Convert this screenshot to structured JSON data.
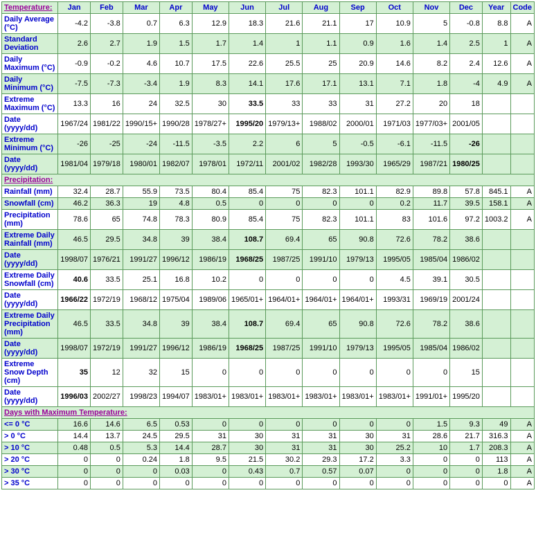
{
  "columns": [
    "Jan",
    "Feb",
    "Mar",
    "Apr",
    "May",
    "Jun",
    "Jul",
    "Aug",
    "Sep",
    "Oct",
    "Nov",
    "Dec",
    "Year",
    "Code"
  ],
  "sections": [
    {
      "title": "Temperature:",
      "rows": [
        {
          "label": "Daily Average (°C)",
          "data": [
            "-4.2",
            "-3.8",
            "0.7",
            "6.3",
            "12.9",
            "18.3",
            "21.6",
            "21.1",
            "17",
            "10.9",
            "5",
            "-0.8",
            "8.8",
            "A"
          ],
          "cls": "even"
        },
        {
          "label": "Standard Deviation",
          "data": [
            "2.6",
            "2.7",
            "1.9",
            "1.5",
            "1.7",
            "1.4",
            "1",
            "1.1",
            "0.9",
            "1.6",
            "1.4",
            "2.5",
            "1",
            "A"
          ],
          "cls": "odd"
        },
        {
          "label": "Daily Maximum (°C)",
          "data": [
            "-0.9",
            "-0.2",
            "4.6",
            "10.7",
            "17.5",
            "22.6",
            "25.5",
            "25",
            "20.9",
            "14.6",
            "8.2",
            "2.4",
            "12.6",
            "A"
          ],
          "cls": "even"
        },
        {
          "label": "Daily Minimum (°C)",
          "data": [
            "-7.5",
            "-7.3",
            "-3.4",
            "1.9",
            "8.3",
            "14.1",
            "17.6",
            "17.1",
            "13.1",
            "7.1",
            "1.8",
            "-4",
            "4.9",
            "A"
          ],
          "cls": "odd"
        },
        {
          "label": "Extreme Maximum (°C)",
          "data": [
            "13.3",
            "16",
            "24",
            "32.5",
            "30",
            "33.5",
            "33",
            "33",
            "31",
            "27.2",
            "20",
            "18",
            "",
            ""
          ],
          "cls": "even",
          "bold": [
            5
          ]
        },
        {
          "label": "Date (yyyy/dd)",
          "data": [
            "1967/24",
            "1981/22",
            "1990/15+",
            "1990/28",
            "1978/27+",
            "1995/20",
            "1979/13+",
            "1988/02",
            "2000/01",
            "1971/03",
            "1977/03+",
            "2001/05",
            "",
            ""
          ],
          "cls": "even",
          "bold": [
            5
          ]
        },
        {
          "label": "Extreme Minimum (°C)",
          "data": [
            "-26",
            "-25",
            "-24",
            "-11.5",
            "-3.5",
            "2.2",
            "6",
            "5",
            "-0.5",
            "-6.1",
            "-11.5",
            "-26",
            "",
            ""
          ],
          "cls": "odd",
          "bold": [
            11
          ]
        },
        {
          "label": "Date (yyyy/dd)",
          "data": [
            "1981/04",
            "1979/18",
            "1980/01",
            "1982/07",
            "1978/01",
            "1972/11",
            "2001/02",
            "1982/28",
            "1993/30",
            "1965/29",
            "1987/21",
            "1980/25",
            "",
            ""
          ],
          "cls": "odd",
          "bold": [
            11
          ]
        }
      ]
    },
    {
      "title": "Precipitation:",
      "rows": [
        {
          "label": "Rainfall (mm)",
          "data": [
            "32.4",
            "28.7",
            "55.9",
            "73.5",
            "80.4",
            "85.4",
            "75",
            "82.3",
            "101.1",
            "82.9",
            "89.8",
            "57.8",
            "845.1",
            "A"
          ],
          "cls": "even"
        },
        {
          "label": "Snowfall (cm)",
          "data": [
            "46.2",
            "36.3",
            "19",
            "4.8",
            "0.5",
            "0",
            "0",
            "0",
            "0",
            "0.2",
            "11.7",
            "39.5",
            "158.1",
            "A"
          ],
          "cls": "odd"
        },
        {
          "label": "Precipitation (mm)",
          "data": [
            "78.6",
            "65",
            "74.8",
            "78.3",
            "80.9",
            "85.4",
            "75",
            "82.3",
            "101.1",
            "83",
            "101.6",
            "97.2",
            "1003.2",
            "A"
          ],
          "cls": "even"
        },
        {
          "label": "Extreme Daily Rainfall (mm)",
          "data": [
            "46.5",
            "29.5",
            "34.8",
            "39",
            "38.4",
            "108.7",
            "69.4",
            "65",
            "90.8",
            "72.6",
            "78.2",
            "38.6",
            "",
            ""
          ],
          "cls": "odd",
          "bold": [
            5
          ]
        },
        {
          "label": "Date (yyyy/dd)",
          "data": [
            "1998/07",
            "1976/21",
            "1991/27",
            "1996/12",
            "1986/19",
            "1968/25",
            "1987/25",
            "1991/10",
            "1979/13",
            "1995/05",
            "1985/04",
            "1986/02",
            "",
            ""
          ],
          "cls": "odd",
          "bold": [
            5
          ]
        },
        {
          "label": "Extreme Daily Snowfall (cm)",
          "data": [
            "40.6",
            "33.5",
            "25.1",
            "16.8",
            "10.2",
            "0",
            "0",
            "0",
            "0",
            "4.5",
            "39.1",
            "30.5",
            "",
            ""
          ],
          "cls": "even",
          "bold": [
            0
          ]
        },
        {
          "label": "Date (yyyy/dd)",
          "data": [
            "1966/22",
            "1972/19",
            "1968/12",
            "1975/04",
            "1989/06",
            "1965/01+",
            "1964/01+",
            "1964/01+",
            "1964/01+",
            "1993/31",
            "1969/19",
            "2001/24",
            "",
            ""
          ],
          "cls": "even",
          "bold": [
            0
          ]
        },
        {
          "label": "Extreme Daily Precipitation (mm)",
          "data": [
            "46.5",
            "33.5",
            "34.8",
            "39",
            "38.4",
            "108.7",
            "69.4",
            "65",
            "90.8",
            "72.6",
            "78.2",
            "38.6",
            "",
            ""
          ],
          "cls": "odd",
          "bold": [
            5
          ]
        },
        {
          "label": "Date (yyyy/dd)",
          "data": [
            "1998/07",
            "1972/19",
            "1991/27",
            "1996/12",
            "1986/19",
            "1968/25",
            "1987/25",
            "1991/10",
            "1979/13",
            "1995/05",
            "1985/04",
            "1986/02",
            "",
            ""
          ],
          "cls": "odd",
          "bold": [
            5
          ]
        },
        {
          "label": "Extreme Snow Depth (cm)",
          "data": [
            "35",
            "12",
            "32",
            "15",
            "0",
            "0",
            "0",
            "0",
            "0",
            "0",
            "0",
            "15",
            "",
            ""
          ],
          "cls": "even",
          "bold": [
            0
          ]
        },
        {
          "label": "Date (yyyy/dd)",
          "data": [
            "1996/03",
            "2002/27",
            "1998/23",
            "1994/07",
            "1983/01+",
            "1983/01+",
            "1983/01+",
            "1983/01+",
            "1983/01+",
            "1983/01+",
            "1991/01+",
            "1995/20",
            "",
            ""
          ],
          "cls": "even",
          "bold": [
            0
          ]
        }
      ]
    },
    {
      "title": "Days with Maximum Temperature:",
      "rows": [
        {
          "label": "<= 0 °C",
          "data": [
            "16.6",
            "14.6",
            "6.5",
            "0.53",
            "0",
            "0",
            "0",
            "0",
            "0",
            "0",
            "1.5",
            "9.3",
            "49",
            "A"
          ],
          "cls": "odd"
        },
        {
          "label": "> 0 °C",
          "data": [
            "14.4",
            "13.7",
            "24.5",
            "29.5",
            "31",
            "30",
            "31",
            "31",
            "30",
            "31",
            "28.6",
            "21.7",
            "316.3",
            "A"
          ],
          "cls": "even"
        },
        {
          "label": "> 10 °C",
          "data": [
            "0.48",
            "0.5",
            "5.3",
            "14.4",
            "28.7",
            "30",
            "31",
            "31",
            "30",
            "25.2",
            "10",
            "1.7",
            "208.3",
            "A"
          ],
          "cls": "odd"
        },
        {
          "label": "> 20 °C",
          "data": [
            "0",
            "0",
            "0.24",
            "1.8",
            "9.5",
            "21.5",
            "30.2",
            "29.3",
            "17.2",
            "3.3",
            "0",
            "0",
            "113",
            "A"
          ],
          "cls": "even"
        },
        {
          "label": "> 30 °C",
          "data": [
            "0",
            "0",
            "0",
            "0.03",
            "0",
            "0.43",
            "0.7",
            "0.57",
            "0.07",
            "0",
            "0",
            "0",
            "1.8",
            "A"
          ],
          "cls": "odd"
        },
        {
          "label": "> 35 °C",
          "data": [
            "0",
            "0",
            "0",
            "0",
            "0",
            "0",
            "0",
            "0",
            "0",
            "0",
            "0",
            "0",
            "0",
            "A"
          ],
          "cls": "even"
        }
      ]
    }
  ]
}
